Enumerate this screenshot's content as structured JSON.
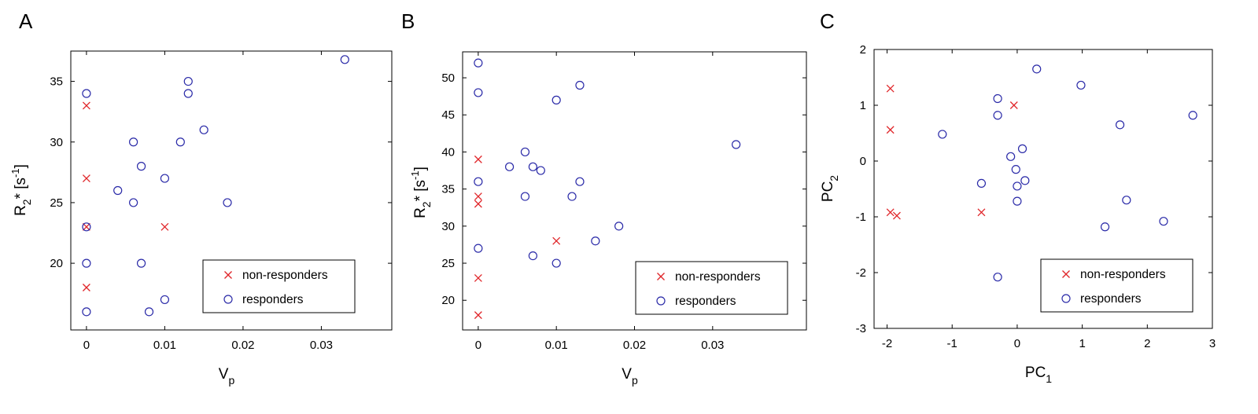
{
  "chart_data": [
    {
      "panel_label": "A",
      "type": "scatter",
      "xlabel": "V",
      "xlabel_sub": "p",
      "ylabel_main": "R",
      "ylabel_sub": "2",
      "ylabel_rest": "* [s",
      "ylabel_sup": "-1",
      "ylabel_close": "]",
      "xlim": [
        -0.002,
        0.039
      ],
      "ylim": [
        14.5,
        37.5
      ],
      "xticks": [
        0,
        0.01,
        0.02,
        0.03
      ],
      "xtick_labels": [
        "0",
        "0.01",
        "0.02",
        "0.03"
      ],
      "yticks": [
        20,
        25,
        30,
        35
      ],
      "ytick_labels": [
        "20",
        "25",
        "30",
        "35"
      ],
      "legend_position": "bottom-right",
      "colors": {
        "non-responders": "#e0262a",
        "responders": "#2a2aa8"
      },
      "series": [
        {
          "name": "non-responders",
          "marker": "x",
          "x": [
            0,
            0,
            0,
            0,
            0.01
          ],
          "y": [
            33,
            27,
            23,
            18,
            23
          ]
        },
        {
          "name": "responders",
          "marker": "o",
          "x": [
            0,
            0,
            0,
            0,
            0.004,
            0.006,
            0.006,
            0.007,
            0.007,
            0.008,
            0.01,
            0.01,
            0.012,
            0.013,
            0.013,
            0.015,
            0.018,
            0.033
          ],
          "y": [
            34,
            23,
            20,
            16,
            26,
            30,
            25,
            28,
            20,
            16,
            27,
            17,
            30,
            35,
            34,
            31,
            25,
            36.8
          ]
        }
      ]
    },
    {
      "panel_label": "B",
      "type": "scatter",
      "xlabel": "V",
      "xlabel_sub": "p",
      "ylabel_main": "R",
      "ylabel_sub": "2",
      "ylabel_rest": "* [s",
      "ylabel_sup": "-1",
      "ylabel_close": "]",
      "xlim": [
        -0.002,
        0.042
      ],
      "ylim": [
        16,
        53.5
      ],
      "xticks": [
        0,
        0.01,
        0.02,
        0.03
      ],
      "xtick_labels": [
        "0",
        "0.01",
        "0.02",
        "0.03"
      ],
      "yticks": [
        20,
        25,
        30,
        35,
        40,
        45,
        50
      ],
      "ytick_labels": [
        "20",
        "25",
        "30",
        "35",
        "40",
        "45",
        "50"
      ],
      "legend_position": "bottom-right",
      "colors": {
        "non-responders": "#e0262a",
        "responders": "#2a2aa8"
      },
      "series": [
        {
          "name": "non-responders",
          "marker": "x",
          "x": [
            0,
            0,
            0,
            0,
            0,
            0.01
          ],
          "y": [
            39,
            34,
            33,
            23,
            18,
            28
          ]
        },
        {
          "name": "responders",
          "marker": "o",
          "x": [
            0,
            0,
            0,
            0,
            0.004,
            0.006,
            0.006,
            0.007,
            0.007,
            0.008,
            0.01,
            0.01,
            0.012,
            0.013,
            0.013,
            0.015,
            0.018,
            0.033
          ],
          "y": [
            52,
            48,
            36,
            27,
            38,
            40,
            34,
            38,
            26,
            37.5,
            47,
            25,
            34,
            49,
            36,
            28,
            30,
            41
          ]
        }
      ]
    },
    {
      "panel_label": "C",
      "type": "scatter",
      "xlabel": "PC",
      "xlabel_sub": "1",
      "ylabel_main": "PC",
      "ylabel_sub": "2",
      "ylabel_rest": "",
      "ylabel_sup": "",
      "ylabel_close": "",
      "xlim": [
        -2.2,
        3
      ],
      "ylim": [
        -3,
        2
      ],
      "xticks": [
        -2,
        -1,
        0,
        1,
        2,
        3
      ],
      "xtick_labels": [
        "-2",
        "-1",
        "0",
        "1",
        "2",
        "3"
      ],
      "yticks": [
        -3,
        -2,
        -1,
        0,
        1,
        2
      ],
      "ytick_labels": [
        "-3",
        "-2",
        "-1",
        "0",
        "1",
        "2"
      ],
      "legend_position": "bottom-right",
      "colors": {
        "non-responders": "#e0262a",
        "responders": "#2a2aa8"
      },
      "series": [
        {
          "name": "non-responders",
          "marker": "x",
          "x": [
            -1.95,
            -1.95,
            -1.95,
            -1.85,
            -0.55,
            -0.05
          ],
          "y": [
            1.3,
            0.56,
            -0.92,
            -0.98,
            -0.92,
            1.0
          ]
        },
        {
          "name": "responders",
          "marker": "o",
          "x": [
            -1.15,
            -0.55,
            -0.3,
            -0.3,
            -0.3,
            -0.1,
            -0.02,
            0,
            0,
            0.08,
            0.12,
            0.3,
            0.98,
            1.35,
            1.58,
            1.68,
            2.25,
            2.7
          ],
          "y": [
            0.48,
            -0.4,
            1.12,
            0.82,
            -2.08,
            0.08,
            -0.15,
            -0.45,
            -0.72,
            0.22,
            -0.35,
            1.65,
            1.36,
            -1.18,
            0.65,
            -0.7,
            -1.08,
            0.82
          ]
        }
      ]
    }
  ]
}
